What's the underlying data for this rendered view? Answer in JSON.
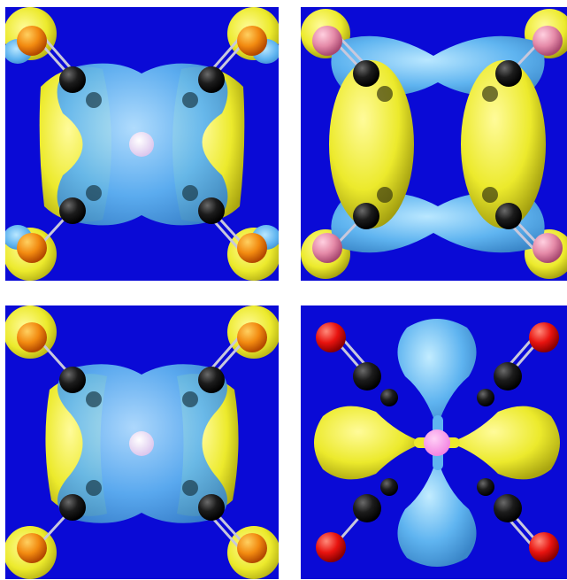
{
  "panels": [
    {
      "id": "p1",
      "scene": "molecular-orbital-isosurface"
    },
    {
      "id": "p2",
      "scene": "molecular-orbital-isosurface"
    },
    {
      "id": "p3",
      "scene": "molecular-orbital-isosurface"
    },
    {
      "id": "p4",
      "scene": "molecular-orbital-isosurface"
    }
  ],
  "colors": {
    "background": "#0a0ad6",
    "positive_lobe": "#f2f030",
    "negative_lobe": "#5fb4f0",
    "carbon": "#151515",
    "oxygen": "#e8130f",
    "oxygen_orange": "#f28a10",
    "oxygen_pink": "#e58aa8",
    "central_atom": "#eedcf5",
    "central_atom_pink": "#f27ee0",
    "bond": "#c8c8dc"
  }
}
